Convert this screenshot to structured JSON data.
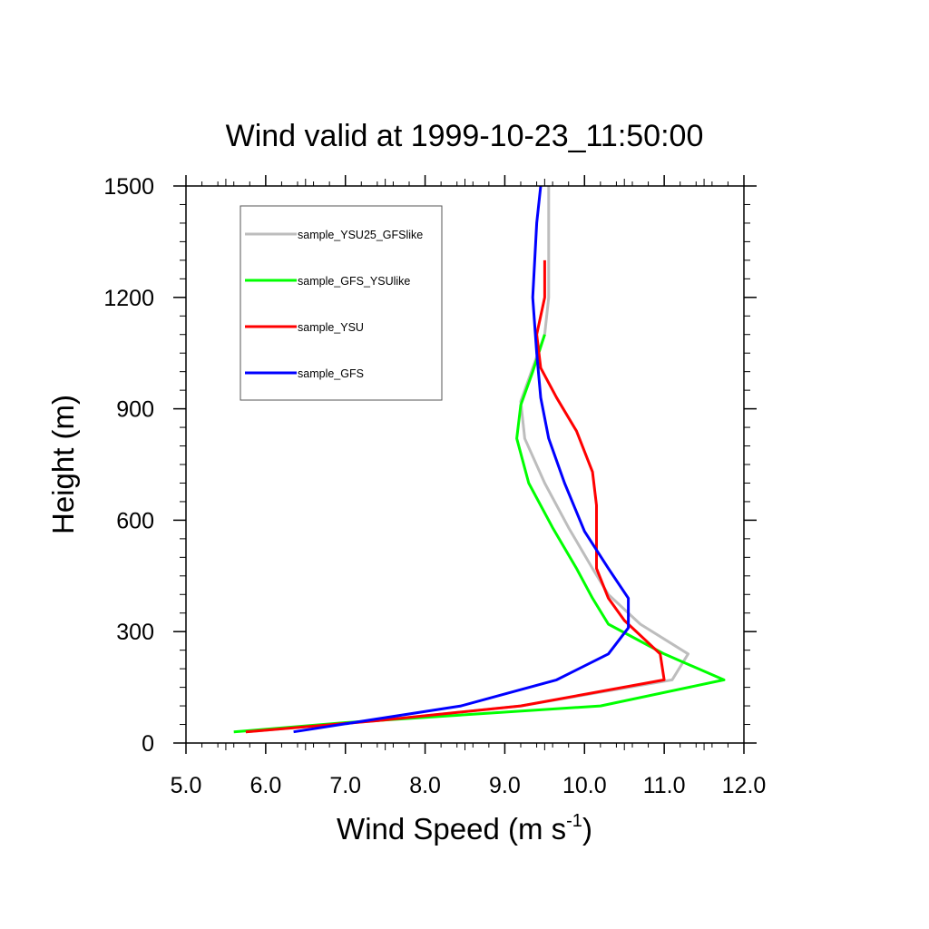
{
  "chart_data": {
    "type": "line",
    "title": "Wind valid at 1999-10-23_11:50:00",
    "xlabel": "Wind Speed (m s",
    "xlabel_sup": "-1",
    "xlabel_end": ")",
    "ylabel": "Height (m)",
    "xlim": [
      5.0,
      12.0
    ],
    "ylim": [
      0,
      1500
    ],
    "x_ticks": [
      "5.0",
      "6.0",
      "7.0",
      "8.0",
      "9.0",
      "10.0",
      "11.0",
      "12.0"
    ],
    "y_ticks": [
      "0",
      "300",
      "600",
      "900",
      "1200",
      "1500"
    ],
    "grid": false,
    "legend_position": "top-left",
    "series": [
      {
        "name": "sample_YSU25_GFSlike",
        "color": "#bdbdbd",
        "points": [
          [
            5.75,
            30
          ],
          [
            7.4,
            60
          ],
          [
            9.2,
            100
          ],
          [
            11.1,
            170
          ],
          [
            11.3,
            240
          ],
          [
            10.7,
            320
          ],
          [
            10.3,
            400
          ],
          [
            10.1,
            470
          ],
          [
            9.8,
            580
          ],
          [
            9.5,
            700
          ],
          [
            9.25,
            820
          ],
          [
            9.2,
            920
          ],
          [
            9.5,
            1100
          ],
          [
            9.55,
            1200
          ],
          [
            9.55,
            1350
          ],
          [
            9.55,
            1500
          ]
        ]
      },
      {
        "name": "sample_GFS_YSUlike",
        "color": "#00ff00",
        "points": [
          [
            5.6,
            30
          ],
          [
            7.0,
            55
          ],
          [
            10.2,
            100
          ],
          [
            11.75,
            170
          ],
          [
            11.0,
            240
          ],
          [
            10.3,
            320
          ],
          [
            10.1,
            390
          ],
          [
            9.9,
            470
          ],
          [
            9.6,
            580
          ],
          [
            9.3,
            700
          ],
          [
            9.15,
            820
          ],
          [
            9.2,
            910
          ],
          [
            9.35,
            1000
          ],
          [
            9.5,
            1100
          ]
        ]
      },
      {
        "name": "sample_YSU",
        "color": "#ff0000",
        "points": [
          [
            5.75,
            30
          ],
          [
            7.4,
            60
          ],
          [
            9.2,
            100
          ],
          [
            11.0,
            170
          ],
          [
            10.95,
            240
          ],
          [
            10.5,
            330
          ],
          [
            10.3,
            390
          ],
          [
            10.15,
            470
          ],
          [
            10.15,
            640
          ],
          [
            10.1,
            730
          ],
          [
            9.9,
            840
          ],
          [
            9.65,
            930
          ],
          [
            9.45,
            1010
          ],
          [
            9.4,
            1100
          ],
          [
            9.5,
            1200
          ],
          [
            9.5,
            1300
          ]
        ]
      },
      {
        "name": "sample_GFS",
        "color": "#0000ff",
        "points": [
          [
            6.35,
            30
          ],
          [
            8.45,
            100
          ],
          [
            9.65,
            170
          ],
          [
            10.3,
            240
          ],
          [
            10.55,
            310
          ],
          [
            10.55,
            390
          ],
          [
            10.3,
            470
          ],
          [
            10.0,
            570
          ],
          [
            9.75,
            700
          ],
          [
            9.55,
            820
          ],
          [
            9.45,
            930
          ],
          [
            9.4,
            1050
          ],
          [
            9.35,
            1200
          ],
          [
            9.4,
            1400
          ],
          [
            9.45,
            1500
          ]
        ]
      }
    ]
  }
}
